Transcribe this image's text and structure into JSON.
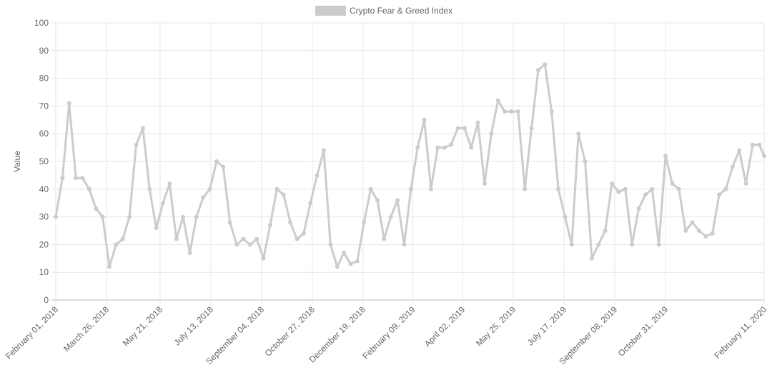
{
  "chart_data": {
    "type": "line",
    "y_label": "Value",
    "grid": true,
    "legend": "top",
    "x": [
      "2018-02-01",
      "2018-02-08",
      "2018-02-15",
      "2018-02-22",
      "2018-03-01",
      "2018-03-08",
      "2018-03-15",
      "2018-03-22",
      "2018-03-29",
      "2018-04-05",
      "2018-04-12",
      "2018-04-19",
      "2018-04-26",
      "2018-05-03",
      "2018-05-10",
      "2018-05-17",
      "2018-05-24",
      "2018-05-31",
      "2018-06-07",
      "2018-06-14",
      "2018-06-21",
      "2018-06-28",
      "2018-07-05",
      "2018-07-12",
      "2018-07-19",
      "2018-07-26",
      "2018-08-02",
      "2018-08-09",
      "2018-08-16",
      "2018-08-23",
      "2018-08-30",
      "2018-09-06",
      "2018-09-13",
      "2018-09-20",
      "2018-09-27",
      "2018-10-04",
      "2018-10-11",
      "2018-10-18",
      "2018-10-25",
      "2018-11-01",
      "2018-11-08",
      "2018-11-15",
      "2018-11-22",
      "2018-11-29",
      "2018-12-06",
      "2018-12-13",
      "2018-12-20",
      "2018-12-27",
      "2019-01-03",
      "2019-01-10",
      "2019-01-17",
      "2019-01-24",
      "2019-01-31",
      "2019-02-07",
      "2019-02-14",
      "2019-02-21",
      "2019-02-28",
      "2019-03-07",
      "2019-03-14",
      "2019-03-21",
      "2019-03-28",
      "2019-04-04",
      "2019-04-11",
      "2019-04-18",
      "2019-04-25",
      "2019-05-02",
      "2019-05-09",
      "2019-05-16",
      "2019-05-23",
      "2019-05-30",
      "2019-06-06",
      "2019-06-13",
      "2019-06-20",
      "2019-06-27",
      "2019-07-04",
      "2019-07-11",
      "2019-07-18",
      "2019-07-25",
      "2019-08-01",
      "2019-08-08",
      "2019-08-15",
      "2019-08-22",
      "2019-08-29",
      "2019-09-05",
      "2019-09-12",
      "2019-09-19",
      "2019-09-26",
      "2019-10-03",
      "2019-10-10",
      "2019-10-17",
      "2019-10-24",
      "2019-10-31",
      "2019-11-07",
      "2019-11-14",
      "2019-11-21",
      "2019-11-28",
      "2019-12-05",
      "2019-12-12",
      "2019-12-19",
      "2019-12-26",
      "2020-01-02",
      "2020-01-09",
      "2020-01-16",
      "2020-01-23",
      "2020-01-30",
      "2020-02-06",
      "2020-02-11"
    ],
    "series": [
      {
        "name": "Crypto Fear & Greed Index",
        "color": "#cccccc",
        "values": [
          30,
          44,
          71,
          44,
          44,
          40,
          33,
          30,
          12,
          20,
          22,
          30,
          56,
          62,
          40,
          26,
          35,
          42,
          22,
          30,
          17,
          30,
          37,
          40,
          50,
          48,
          28,
          20,
          22,
          20,
          22,
          15,
          27,
          40,
          38,
          28,
          22,
          24,
          35,
          45,
          54,
          20,
          12,
          17,
          13,
          14,
          28,
          40,
          36,
          22,
          30,
          36,
          20,
          40,
          55,
          65,
          40,
          55,
          55,
          56,
          62,
          62,
          55,
          64,
          42,
          60,
          72,
          68,
          68,
          68,
          40,
          62,
          83,
          85,
          68,
          40,
          30,
          20,
          60,
          50,
          15,
          20,
          25,
          42,
          39,
          40,
          20,
          33,
          38,
          40,
          20,
          52,
          42,
          40,
          25,
          28,
          25,
          23,
          24,
          38,
          40,
          48,
          54,
          42,
          56,
          56,
          52
        ]
      }
    ],
    "xlim": [
      "2018-02-01",
      "2020-02-11"
    ],
    "xticks": [
      {
        "value": "2018-02-01",
        "label": "February 01, 2018"
      },
      {
        "value": "2018-03-26",
        "label": "March 26, 2018"
      },
      {
        "value": "2018-05-21",
        "label": "May 21, 2018"
      },
      {
        "value": "2018-07-13",
        "label": "July 13, 2018"
      },
      {
        "value": "2018-09-04",
        "label": "September 04, 2018"
      },
      {
        "value": "2018-10-27",
        "label": "October 27, 2018"
      },
      {
        "value": "2018-12-19",
        "label": "December 19, 2018"
      },
      {
        "value": "2019-02-09",
        "label": "February 09, 2019"
      },
      {
        "value": "2019-04-02",
        "label": "April 02, 2019"
      },
      {
        "value": "2019-05-25",
        "label": "May 25, 2019"
      },
      {
        "value": "2019-07-17",
        "label": "July 17, 2019"
      },
      {
        "value": "2019-09-08",
        "label": "September 08, 2019"
      },
      {
        "value": "2019-10-31",
        "label": "October 31, 2019"
      },
      {
        "value": "2020-02-11",
        "label": "February 11, 2020"
      }
    ],
    "ylim": [
      0,
      100
    ],
    "yticks": [
      0,
      10,
      20,
      30,
      40,
      50,
      60,
      70,
      80,
      90,
      100
    ]
  }
}
